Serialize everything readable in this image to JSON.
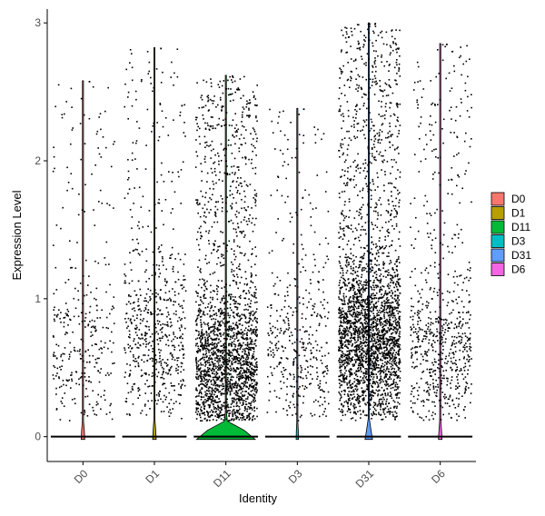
{
  "chart_data": {
    "type": "scatter",
    "subtype": "violin-jitter",
    "title": "",
    "xlabel": "Identity",
    "ylabel": "Expression Level",
    "categories": [
      "D0",
      "D1",
      "D11",
      "D3",
      "D31",
      "D6"
    ],
    "ylim": [
      -0.18,
      3.1
    ],
    "yticks": [
      0,
      1,
      2,
      3
    ],
    "grid": false,
    "legend": {
      "position": "right",
      "entries": [
        "D0",
        "D1",
        "D11",
        "D3",
        "D31",
        "D6"
      ]
    },
    "colors": [
      "#F8766D",
      "#B79F00",
      "#00BA38",
      "#00BFC4",
      "#619CFF",
      "#F564E3"
    ],
    "max_values": [
      2.58,
      2.82,
      2.62,
      2.38,
      3.0,
      2.85
    ],
    "zero_violin_halfwidth": [
      0.02,
      0.02,
      0.45,
      0.01,
      0.05,
      0.02
    ],
    "nonzero_cells": [
      330,
      650,
      2200,
      430,
      2900,
      700
    ],
    "expression_mode": [
      0.5,
      0.6,
      0.4,
      0.5,
      0.6,
      0.5
    ]
  }
}
